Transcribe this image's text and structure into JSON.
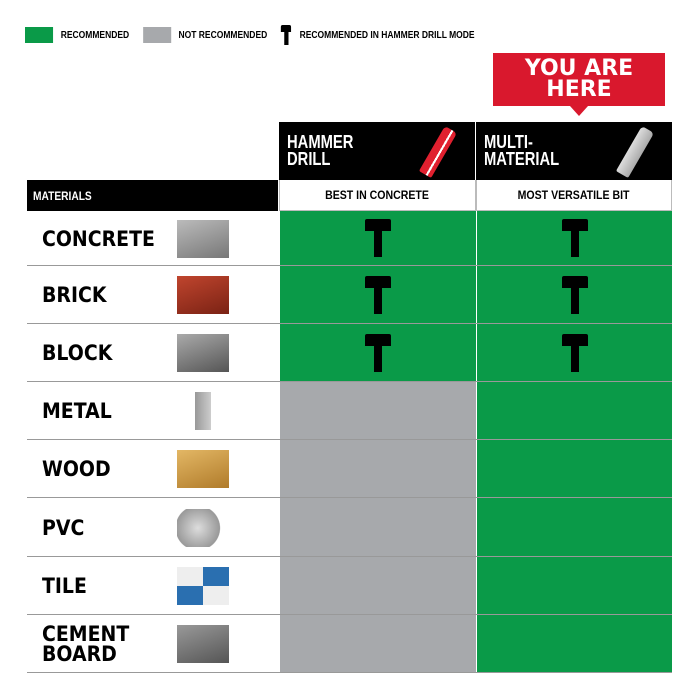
{
  "legend": [
    {
      "label": "RECOMMENDED",
      "color": "#0a9a48"
    },
    {
      "label": "NOT RECOMMENDED",
      "color": "#a7a9ac"
    },
    {
      "label": "RECOMMENDED IN HAMMER DRILL MODE",
      "icon": "hammer-icon"
    }
  ],
  "callout": {
    "line1": "YOU ARE",
    "line2": "HERE",
    "color": "#d9182d"
  },
  "columns": [
    {
      "line1": "HAMMER",
      "line2": "DRILL",
      "subtitle": "BEST IN CONCRETE",
      "bit_color": "#e0202f"
    },
    {
      "line1": "MULTI-",
      "line2": "MATERIAL",
      "subtitle": "MOST VERSATILE BIT",
      "bit_color": "#c8c8c8"
    }
  ],
  "materials_header": "MATERIALS",
  "rows": [
    {
      "line1": "CONCRETE",
      "line2": "",
      "cells": [
        "hammer",
        "hammer"
      ]
    },
    {
      "line1": "BRICK",
      "line2": "",
      "cells": [
        "hammer",
        "hammer"
      ]
    },
    {
      "line1": "BLOCK",
      "line2": "",
      "cells": [
        "hammer",
        "hammer"
      ]
    },
    {
      "line1": "METAL",
      "line2": "",
      "cells": [
        "not",
        "rec"
      ]
    },
    {
      "line1": "WOOD",
      "line2": "",
      "cells": [
        "not",
        "rec"
      ]
    },
    {
      "line1": "PVC",
      "line2": "",
      "cells": [
        "not",
        "rec"
      ]
    },
    {
      "line1": "TILE",
      "line2": "",
      "cells": [
        "not",
        "rec"
      ]
    },
    {
      "line1": "CEMENT",
      "line2": "BOARD",
      "cells": [
        "not",
        "rec"
      ]
    }
  ],
  "colors": {
    "recommended": "#0a9a48",
    "not_recommended": "#a7a9ac"
  }
}
